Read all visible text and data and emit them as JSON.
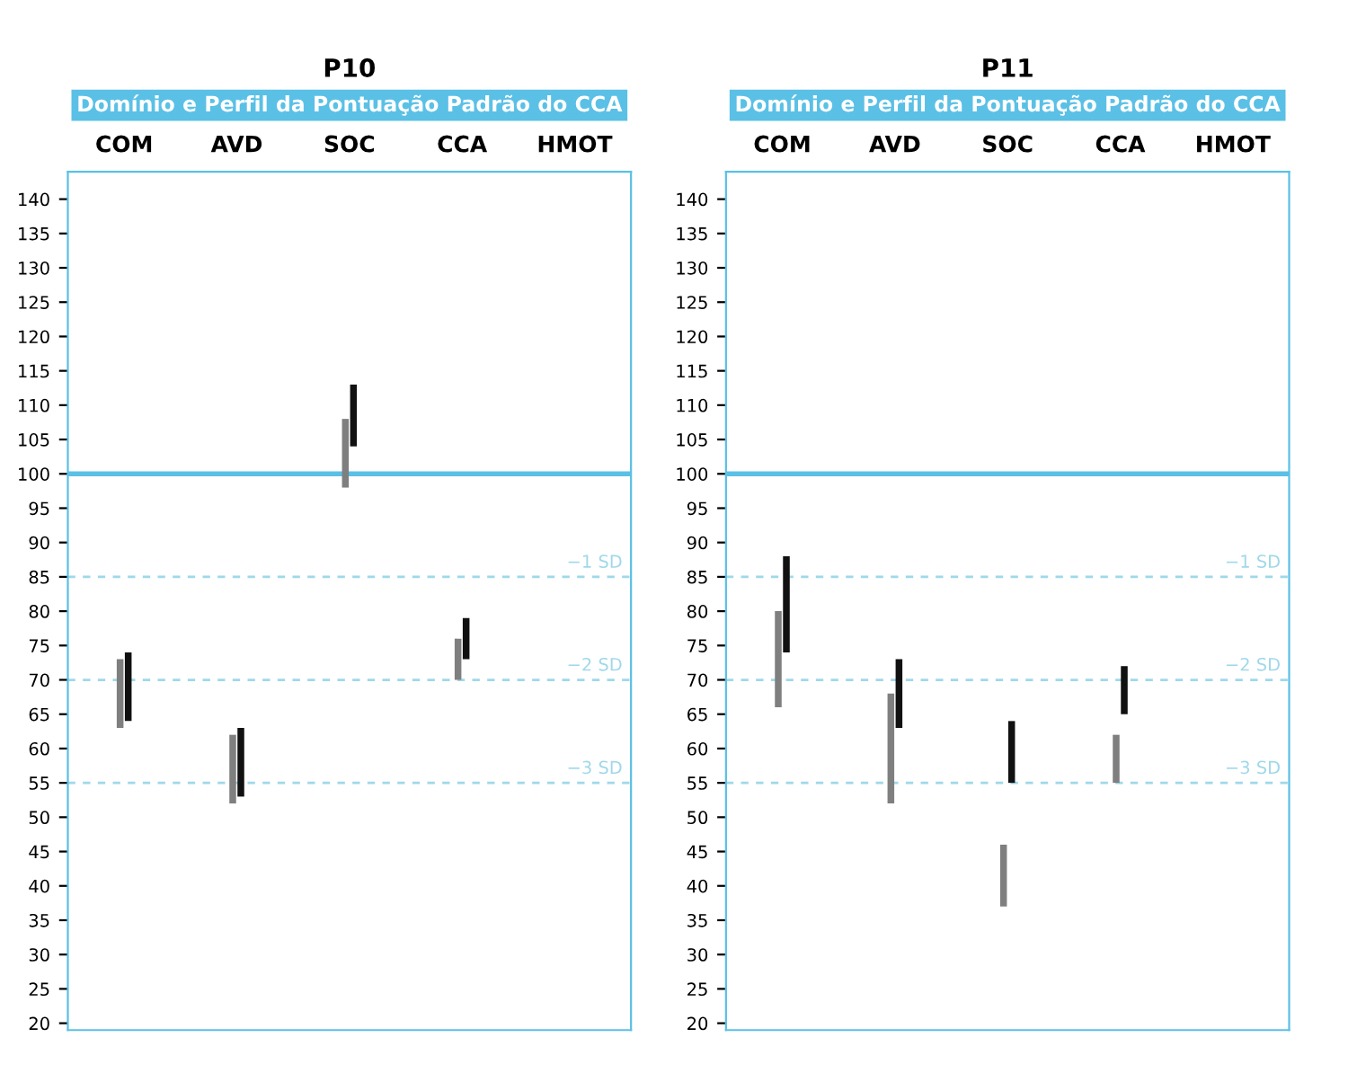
{
  "chart_data": [
    {
      "type": "bar",
      "title": "P10",
      "subtitle": "Domínio e Perfil da Pontuação Padrão do CCA",
      "categories": [
        "COM",
        "AVD",
        "SOC",
        "CCA",
        "HMOT"
      ],
      "series": [
        {
          "color": "#7f7f7f",
          "base": [
            63,
            52,
            98,
            70,
            null
          ],
          "values": [
            10,
            10,
            10,
            6,
            null
          ]
        },
        {
          "color": "#111111",
          "base": [
            64,
            53,
            104,
            73,
            null
          ],
          "values": [
            10,
            10,
            9,
            6,
            null
          ]
        }
      ],
      "ylim": [
        19,
        144
      ],
      "yticks": [
        20,
        25,
        30,
        35,
        40,
        45,
        50,
        55,
        60,
        65,
        70,
        75,
        80,
        85,
        90,
        95,
        100,
        105,
        110,
        115,
        120,
        125,
        130,
        135,
        140
      ],
      "ref_lines": [
        {
          "axis": "y",
          "value": 100,
          "color": "#5bc0e6",
          "line_style": "solid"
        },
        {
          "axis": "y",
          "value": 85,
          "label": "−1 SD",
          "color": "#9fd8ea",
          "line_style": "dashed"
        },
        {
          "axis": "y",
          "value": 70,
          "label": "−2 SD",
          "color": "#9fd8ea",
          "line_style": "dashed"
        },
        {
          "axis": "y",
          "value": 55,
          "label": "−3 SD",
          "color": "#9fd8ea",
          "line_style": "dashed"
        }
      ],
      "grid": false
    },
    {
      "type": "bar",
      "title": "P11",
      "subtitle": "Domínio e Perfil da Pontuação Padrão do CCA",
      "categories": [
        "COM",
        "AVD",
        "SOC",
        "CCA",
        "HMOT"
      ],
      "series": [
        {
          "color": "#7f7f7f",
          "base": [
            66,
            52,
            37,
            55,
            null
          ],
          "values": [
            14,
            16,
            9,
            7,
            null
          ]
        },
        {
          "color": "#111111",
          "base": [
            74,
            63,
            55,
            65,
            null
          ],
          "values": [
            14,
            10,
            9,
            7,
            null
          ]
        }
      ],
      "ylim": [
        19,
        144
      ],
      "yticks": [
        20,
        25,
        30,
        35,
        40,
        45,
        50,
        55,
        60,
        65,
        70,
        75,
        80,
        85,
        90,
        95,
        100,
        105,
        110,
        115,
        120,
        125,
        130,
        135,
        140
      ],
      "ref_lines": [
        {
          "axis": "y",
          "value": 100,
          "color": "#5bc0e6",
          "line_style": "solid"
        },
        {
          "axis": "y",
          "value": 85,
          "label": "−1 SD",
          "color": "#9fd8ea",
          "line_style": "dashed"
        },
        {
          "axis": "y",
          "value": 70,
          "label": "−2 SD",
          "color": "#9fd8ea",
          "line_style": "dashed"
        },
        {
          "axis": "y",
          "value": 55,
          "label": "−3 SD",
          "color": "#9fd8ea",
          "line_style": "dashed"
        }
      ],
      "grid": false
    }
  ]
}
